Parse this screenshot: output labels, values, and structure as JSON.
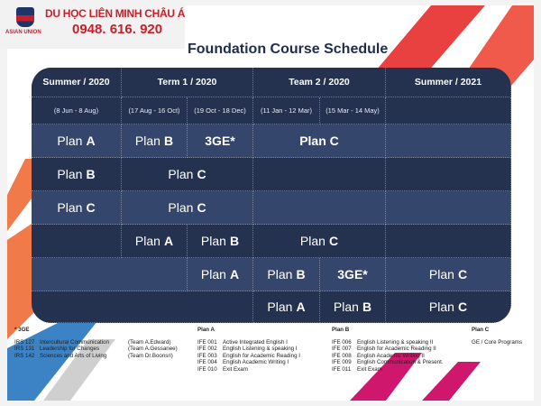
{
  "logo": {
    "brand": "DU HỌC LIÊN MINH CHÂU Á",
    "phone": "0948. 616. 920",
    "sub": "ASIAN UNION"
  },
  "title": "Foundation Course Schedule",
  "colors": {
    "dark_row": "#243250",
    "light_row": "#34466c",
    "accent_red": "#e8413f",
    "accent_magenta": "#d0176e",
    "accent_blue": "#3b83c4"
  },
  "headers": [
    "Summer / 2020",
    "Term 1 / 2020",
    "Team 2 / 2020",
    "Summer / 2021"
  ],
  "dates": [
    "(8 Jun - 8 Aug)",
    "(17 Aug - 16 Oct)",
    "(19 Oct - 18 Dec)",
    "(11 Jan - 12 Mar)",
    "(15 Mar - 14 May)",
    ""
  ],
  "rows": [
    {
      "shade": "L",
      "cells": [
        {
          "col": 1,
          "span": 1,
          "p": "Plan",
          "b": "A"
        },
        {
          "col": 2,
          "span": 1,
          "p": "Plan",
          "b": "B"
        },
        {
          "col": 3,
          "span": 1,
          "p": "",
          "b": "3GE*"
        },
        {
          "col": 4,
          "span": 2,
          "p": "",
          "b": "Plan C"
        },
        {
          "col": 6,
          "span": 1,
          "p": "",
          "b": ""
        }
      ]
    },
    {
      "shade": "D",
      "cells": [
        {
          "col": 1,
          "span": 1,
          "p": "Plan",
          "b": "B"
        },
        {
          "col": 2,
          "span": 2,
          "p": "Plan",
          "b": "C"
        },
        {
          "col": 4,
          "span": 2,
          "p": "",
          "b": ""
        },
        {
          "col": 6,
          "span": 1,
          "p": "",
          "b": ""
        }
      ]
    },
    {
      "shade": "L",
      "cells": [
        {
          "col": 1,
          "span": 1,
          "p": "Plan",
          "b": "C"
        },
        {
          "col": 2,
          "span": 2,
          "p": "Plan",
          "b": "C"
        },
        {
          "col": 4,
          "span": 2,
          "p": "",
          "b": ""
        },
        {
          "col": 6,
          "span": 1,
          "p": "",
          "b": ""
        }
      ]
    },
    {
      "shade": "D",
      "cells": [
        {
          "col": 1,
          "span": 1,
          "p": "",
          "b": ""
        },
        {
          "col": 2,
          "span": 1,
          "p": "Plan",
          "b": "A"
        },
        {
          "col": 3,
          "span": 1,
          "p": "Plan",
          "b": "B"
        },
        {
          "col": 4,
          "span": 2,
          "p": "Plan",
          "b": "C"
        },
        {
          "col": 6,
          "span": 1,
          "p": "",
          "b": ""
        }
      ]
    },
    {
      "shade": "L",
      "cells": [
        {
          "col": 1,
          "span": 2,
          "p": "",
          "b": ""
        },
        {
          "col": 3,
          "span": 1,
          "p": "Plan",
          "b": "A"
        },
        {
          "col": 4,
          "span": 1,
          "p": "Plan",
          "b": "B"
        },
        {
          "col": 5,
          "span": 1,
          "p": "",
          "b": "3GE*"
        },
        {
          "col": 6,
          "span": 1,
          "p": "Plan",
          "b": "C"
        }
      ]
    },
    {
      "shade": "D",
      "cells": [
        {
          "col": 1,
          "span": 3,
          "p": "",
          "b": ""
        },
        {
          "col": 4,
          "span": 1,
          "p": "Plan",
          "b": "A"
        },
        {
          "col": 5,
          "span": 1,
          "p": "Plan",
          "b": "B"
        },
        {
          "col": 6,
          "span": 1,
          "p": "Plan",
          "b": "C"
        }
      ]
    }
  ],
  "notes": [
    {
      "title": "* 3GE",
      "items": [
        [
          "IRS 127",
          "Intercultural Communication",
          "(Team A.Edward)"
        ],
        [
          "IRS 131",
          "Leadership for Changes",
          "(Team A.Gessanee)"
        ],
        [
          "IRS 142",
          "Sciences and Arts of Living",
          "(Team Dr.Boonsri)"
        ]
      ]
    },
    {
      "title": "Plan A",
      "items": [
        [
          "IFE 001",
          "Active Integrated English I"
        ],
        [
          "IFE 002",
          "English Listening & speaking I"
        ],
        [
          "IFE 003",
          "English for Academic Reading I"
        ],
        [
          "IFE 004",
          "English Academic Writing I"
        ],
        [
          "IFE 010",
          "Exit Exam"
        ]
      ]
    },
    {
      "title": "Plan B",
      "items": [
        [
          "IFE 006",
          "English Listening & speaking II"
        ],
        [
          "IFE 007",
          "English for Academic Reading II"
        ],
        [
          "IFE 008",
          "English Academic Writing II"
        ],
        [
          "IFE 009",
          "English Communication & Present."
        ],
        [
          "IFE 011",
          "Exit Exam"
        ]
      ]
    },
    {
      "title": "Plan C",
      "items": [
        [
          "",
          "GE / Core Programs"
        ]
      ]
    }
  ]
}
